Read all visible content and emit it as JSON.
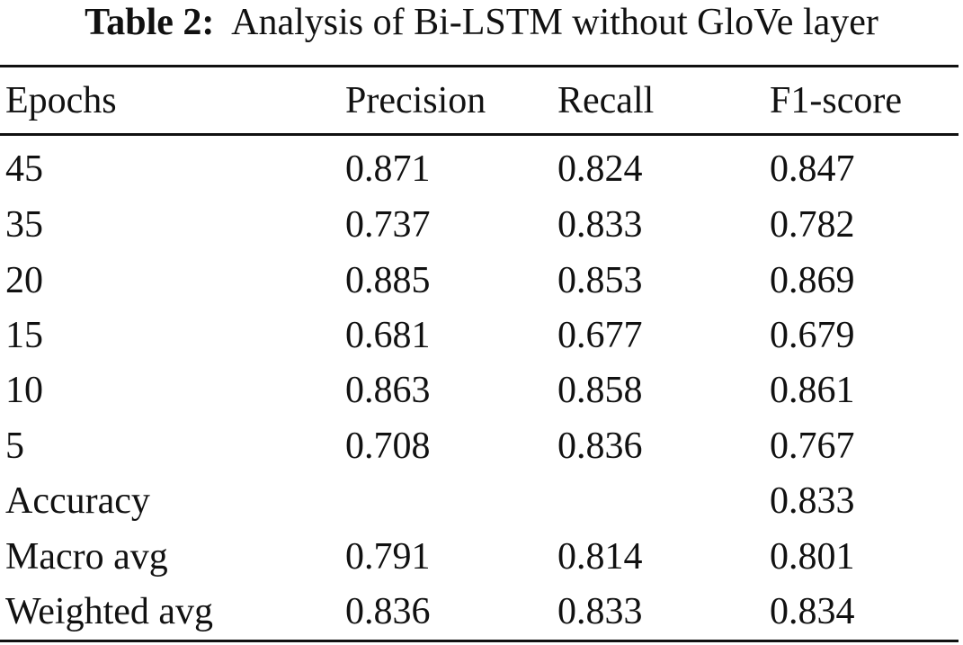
{
  "caption": {
    "label": "Table 2:",
    "text": "Analysis of Bi-LSTM without GloVe layer"
  },
  "table": {
    "headers": [
      "Epochs",
      "Precision",
      "Recall",
      "F1-score"
    ],
    "rows": [
      [
        "45",
        "0.871",
        "0.824",
        "0.847"
      ],
      [
        "35",
        "0.737",
        "0.833",
        "0.782"
      ],
      [
        "20",
        "0.885",
        "0.853",
        "0.869"
      ],
      [
        "15",
        "0.681",
        "0.677",
        "0.679"
      ],
      [
        "10",
        "0.863",
        "0.858",
        "0.861"
      ],
      [
        "5",
        "0.708",
        "0.836",
        "0.767"
      ],
      [
        "Accuracy",
        "",
        "",
        "0.833"
      ],
      [
        "Macro avg",
        "0.791",
        "0.814",
        "0.801"
      ],
      [
        "Weighted avg",
        "0.836",
        "0.833",
        "0.834"
      ]
    ]
  }
}
